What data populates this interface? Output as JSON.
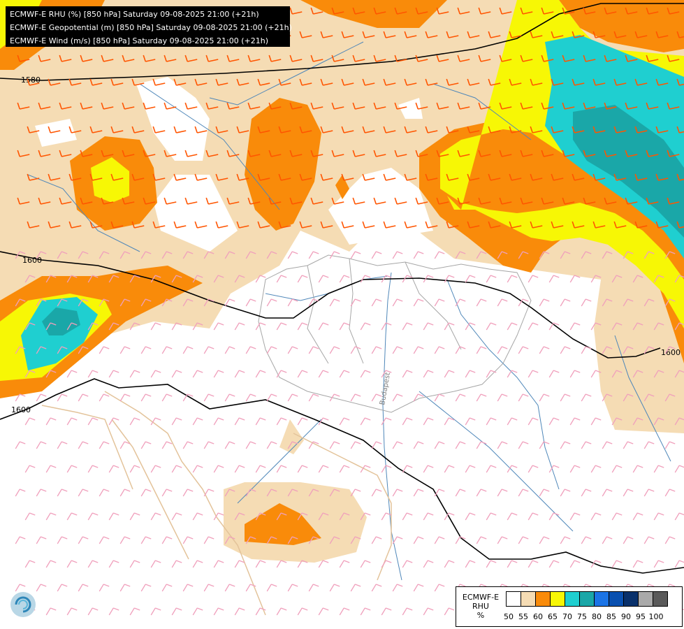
{
  "header": {
    "lines": [
      "ECMWF-E RHU (%) [850 hPa] Saturday 09-08-2025 21:00 (+21h)",
      "ECMWF-E Geopotential (m) [850 hPa] Saturday 09-08-2025 21:00 (+21h)",
      "ECMWF-E Wind (m/s) [850 hPa] Saturday 09-08-2025 21:00 (+21h)"
    ]
  },
  "map": {
    "contour_labels": [
      "1580",
      "1600",
      "1600",
      "1600"
    ],
    "city_label": "Budapest",
    "colors": {
      "rh_50_55": "#f5dcb4",
      "rh_55_60": "#f98b0a",
      "rh_60_65": "#f7f705",
      "rh_65_70": "#1fcfd0",
      "rh_70_75": "#1aa7a8",
      "wind_barb_strong": "#ff5500",
      "wind_barb_weak": "#f0a0bc",
      "contour": "#000000",
      "rivers": "#4f87b9",
      "borders": "#a6a6a6"
    }
  },
  "legend": {
    "caption": [
      "ECMWF-E",
      "RHU",
      "%"
    ],
    "swatch_colors": [
      "#ffffff",
      "#f5dcb4",
      "#f98b0a",
      "#f7f705",
      "#1fcfd0",
      "#1aa7a8",
      "#1b74e6",
      "#0950b0",
      "#08306b",
      "#a9a9a9",
      "#5a5a5a"
    ],
    "ticks": [
      "50",
      "55",
      "60",
      "65",
      "70",
      "75",
      "80",
      "85",
      "90",
      "95",
      "100"
    ]
  }
}
